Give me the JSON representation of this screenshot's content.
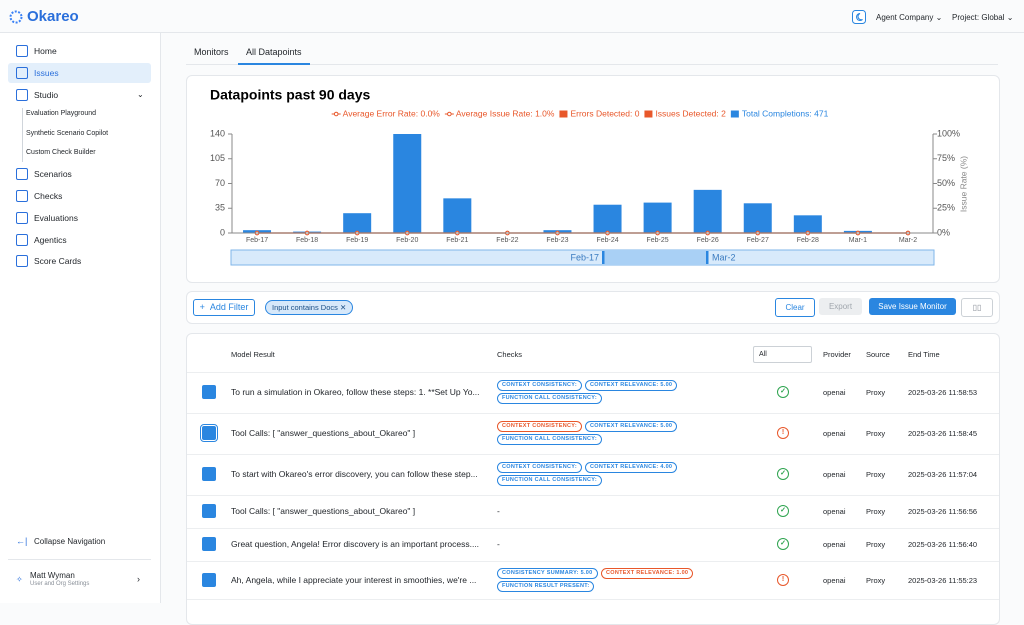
{
  "header": {
    "logo": "Okareo",
    "org": "Agent Company",
    "project": "Project: Global"
  },
  "sidebar": {
    "nav": [
      "Home",
      "Issues",
      "Studio"
    ],
    "studio_items": [
      "Evaluation Playground",
      "Synthetic Scenario Copilot",
      "Custom Check Builder"
    ],
    "more": [
      "Scenarios",
      "Checks",
      "Evaluations",
      "Agentics",
      "Score Cards"
    ],
    "collapse": "Collapse Navigation",
    "user": {
      "name": "Matt Wyman",
      "subtitle": "User and Org Settings"
    }
  },
  "tabs": [
    "Monitors",
    "All Datapoints"
  ],
  "chart_data": {
    "type": "bar",
    "title": "Datapoints past 90 days",
    "categories": [
      "Feb-17",
      "Feb-18",
      "Feb-19",
      "Feb-20",
      "Feb-21",
      "Feb-22",
      "Feb-23",
      "Feb-24",
      "Feb-25",
      "Feb-26",
      "Feb-27",
      "Feb-28",
      "Mar-1",
      "Mar-2"
    ],
    "series": [
      {
        "name": "Average Error Rate: 0.0%",
        "color": "#e8572a",
        "kind": "line",
        "axis": "y2",
        "values": [
          0,
          0,
          0,
          0,
          0,
          0,
          0,
          0,
          0,
          0,
          0,
          0,
          0,
          0
        ]
      },
      {
        "name": "Average Issue Rate: 1.0%",
        "color": "#e8572a",
        "kind": "line",
        "axis": "y2",
        "values": [
          0,
          0,
          0,
          0,
          0,
          0,
          0,
          0,
          0,
          0,
          0,
          0,
          0,
          0
        ]
      },
      {
        "name": "Errors Detected: 0",
        "color": "#e8572a",
        "kind": "bar",
        "values": [
          0,
          0,
          0,
          0,
          0,
          0,
          0,
          0,
          0,
          0,
          0,
          0,
          0,
          0
        ]
      },
      {
        "name": "Issues Detected: 2",
        "color": "#e8572a",
        "kind": "bar",
        "values": [
          0,
          0,
          0,
          0,
          0,
          0,
          0,
          0,
          0,
          0,
          0,
          0,
          0,
          0
        ]
      },
      {
        "name": "Total Completions: 471",
        "color": "#2a86e0",
        "kind": "bar",
        "values": [
          4,
          2,
          28,
          140,
          49,
          0,
          4,
          40,
          43,
          61,
          42,
          25,
          3,
          0
        ]
      }
    ],
    "ylim": [
      0,
      140
    ],
    "yticks": [
      0,
      35,
      70,
      105,
      140
    ],
    "y2lim": [
      0,
      100
    ],
    "y2ticks": [
      {
        "value": 0,
        "label": "0%"
      },
      {
        "value": 25,
        "label": "25%"
      },
      {
        "value": 50,
        "label": "50%"
      },
      {
        "value": 75,
        "label": "75%"
      },
      {
        "value": 100,
        "label": "100%"
      }
    ],
    "y2label": "Issue Rate (%)",
    "grid": false
  },
  "filters": {
    "add": "Add Filter",
    "active": "Input contains Docs",
    "clear": "Clear",
    "export": "Export",
    "save": "Save Issue Monitor"
  },
  "table": {
    "columns": [
      "Model Result",
      "Checks",
      "All",
      "Provider",
      "Source",
      "End Time"
    ],
    "rows": [
      {
        "result": "To run a simulation in Okareo, follow these steps: 1. **Set Up Yo...",
        "checks": [
          {
            "text": "CONTEXT CONSISTENCY:",
            "color": "#2a86e0"
          },
          {
            "text": "CONTEXT RELEVANCE: 5.00",
            "color": "#2a86e0"
          },
          {
            "text": "FUNCTION CALL CONSISTENCY:",
            "color": "#2a86e0"
          }
        ],
        "provider": "openai",
        "source": "Proxy",
        "end_time": "2025-03-26 11:58:53"
      },
      {
        "result": "Tool Calls: [ \"answer_questions_about_Okareo\" ]",
        "checks": [
          {
            "text": "CONTEXT CONSISTENCY:",
            "color": "#e8572a"
          },
          {
            "text": "CONTEXT RELEVANCE: 5.00",
            "color": "#2a86e0"
          },
          {
            "text": "FUNCTION CALL CONSISTENCY:",
            "color": "#2a86e0"
          }
        ],
        "provider": "openai",
        "source": "Proxy",
        "end_time": "2025-03-26 11:58:45"
      },
      {
        "result": "To start with Okareo's error discovery, you can follow these step...",
        "checks": [
          {
            "text": "CONTEXT CONSISTENCY:",
            "color": "#2a86e0"
          },
          {
            "text": "CONTEXT RELEVANCE: 4.00",
            "color": "#2a86e0"
          },
          {
            "text": "FUNCTION CALL CONSISTENCY:",
            "color": "#2a86e0"
          }
        ],
        "provider": "openai",
        "source": "Proxy",
        "end_time": "2025-03-26 11:57:04"
      },
      {
        "result": "Tool Calls: [ \"answer_questions_about_Okareo\" ]",
        "checks": "-",
        "provider": "openai",
        "source": "Proxy",
        "end_time": "2025-03-26 11:56:56"
      },
      {
        "result": "Great question, Angela! Error discovery is an important process....",
        "checks": "-",
        "provider": "openai",
        "source": "Proxy",
        "end_time": "2025-03-26 11:56:40"
      },
      {
        "result": "Ah, Angela, while I appreciate your interest in smoothies, we're ...",
        "checks": [
          {
            "text": "CONSISTENCY SUMMARY: 5.00",
            "color": "#2a86e0"
          },
          {
            "text": "CONTEXT RELEVANCE: 1.00",
            "color": "#e8572a"
          },
          {
            "text": "FUNCTION RESULT PRESENT:",
            "color": "#2a86e0"
          }
        ],
        "provider": "openai",
        "source": "Proxy",
        "end_time": "2025-03-26 11:55:23"
      }
    ]
  }
}
